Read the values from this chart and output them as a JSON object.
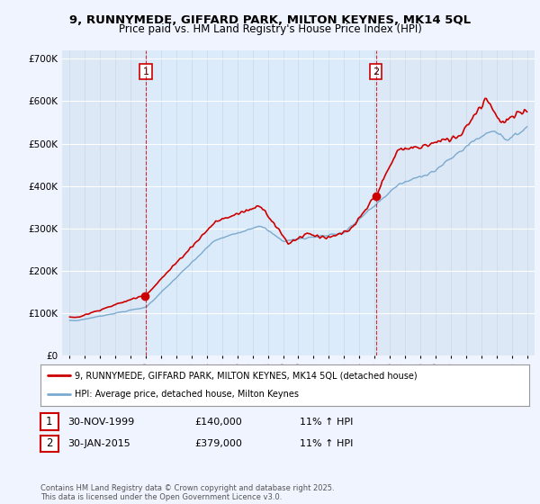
{
  "title1": "9, RUNNYMEDE, GIFFARD PARK, MILTON KEYNES, MK14 5QL",
  "title2": "Price paid vs. HM Land Registry's House Price Index (HPI)",
  "background_color": "#f0f4ff",
  "plot_bg_color": "#dce8f5",
  "highlight_bg_color": "#e8f0fa",
  "red_color": "#cc0000",
  "blue_color": "#7aaad0",
  "marker1_x": 2000.0,
  "marker2_x": 2015.08,
  "legend_line1": "9, RUNNYMEDE, GIFFARD PARK, MILTON KEYNES, MK14 5QL (detached house)",
  "legend_line2": "HPI: Average price, detached house, Milton Keynes",
  "table_row1": [
    "1",
    "30-NOV-1999",
    "£140,000",
    "11% ↑ HPI"
  ],
  "table_row2": [
    "2",
    "30-JAN-2015",
    "£379,000",
    "11% ↑ HPI"
  ],
  "footer": "Contains HM Land Registry data © Crown copyright and database right 2025.\nThis data is licensed under the Open Government Licence v3.0.",
  "ylim": [
    0,
    720000
  ],
  "yticks": [
    0,
    100000,
    200000,
    300000,
    400000,
    500000,
    600000,
    700000
  ],
  "ytick_labels": [
    "£0",
    "£100K",
    "£200K",
    "£300K",
    "£400K",
    "£500K",
    "£600K",
    "£700K"
  ],
  "xmin": 1995,
  "xmax": 2025
}
